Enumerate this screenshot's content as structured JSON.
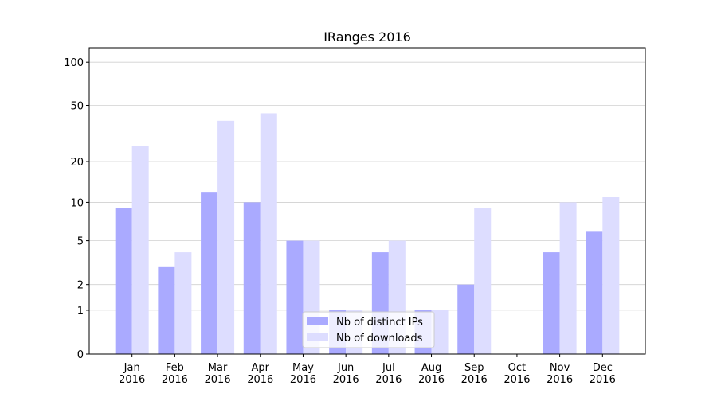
{
  "chart_data": {
    "type": "bar",
    "title": "IRanges 2016",
    "categories": [
      [
        "Jan",
        "2016"
      ],
      [
        "Feb",
        "2016"
      ],
      [
        "Mar",
        "2016"
      ],
      [
        "Apr",
        "2016"
      ],
      [
        "May",
        "2016"
      ],
      [
        "Jun",
        "2016"
      ],
      [
        "Jul",
        "2016"
      ],
      [
        "Aug",
        "2016"
      ],
      [
        "Sep",
        "2016"
      ],
      [
        "Oct",
        "2016"
      ],
      [
        "Nov",
        "2016"
      ],
      [
        "Dec",
        "2016"
      ]
    ],
    "series": [
      {
        "name": "Nb of distinct IPs",
        "color": "#aaaaff",
        "values": [
          9,
          3,
          12,
          10,
          5,
          1,
          4,
          1,
          2,
          0,
          4,
          6
        ]
      },
      {
        "name": "Nb of downloads",
        "color": "#ddddff",
        "values": [
          26,
          4,
          39,
          44,
          5,
          1,
          5,
          1,
          9,
          0,
          10,
          11
        ]
      }
    ],
    "scale": "log1p",
    "ylim": [
      0,
      126
    ],
    "yticks": [
      0,
      1,
      2,
      5,
      10,
      20,
      50,
      100
    ],
    "grid": true,
    "legend": "lower center"
  }
}
